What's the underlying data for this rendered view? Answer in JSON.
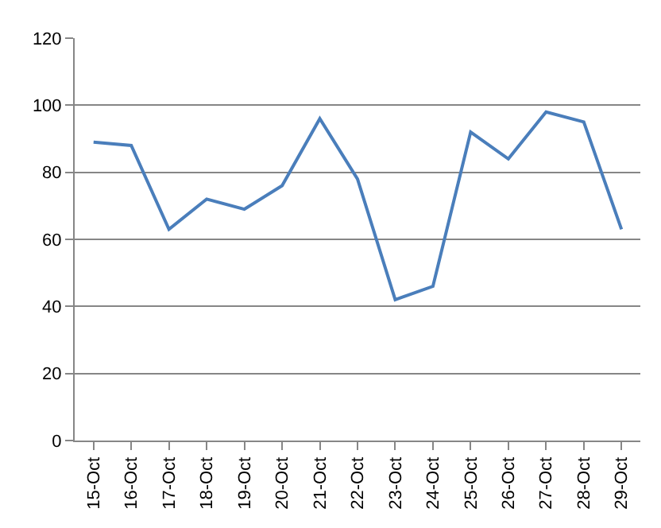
{
  "chart_data": {
    "type": "line",
    "categories": [
      "15-Oct",
      "16-Oct",
      "17-Oct",
      "18-Oct",
      "19-Oct",
      "20-Oct",
      "21-Oct",
      "22-Oct",
      "23-Oct",
      "24-Oct",
      "25-Oct",
      "26-Oct",
      "27-Oct",
      "28-Oct",
      "29-Oct"
    ],
    "series": [
      {
        "color": "#4a7ebb",
        "values": [
          89,
          88,
          63,
          72,
          69,
          76,
          96,
          78,
          42,
          46,
          92,
          84,
          98,
          95,
          63
        ]
      }
    ],
    "ylim": [
      0,
      120
    ],
    "yticks": [
      0,
      20,
      40,
      60,
      80,
      100,
      120
    ],
    "grid": "y",
    "legend": false,
    "marker": "none",
    "line_style": "solid"
  }
}
